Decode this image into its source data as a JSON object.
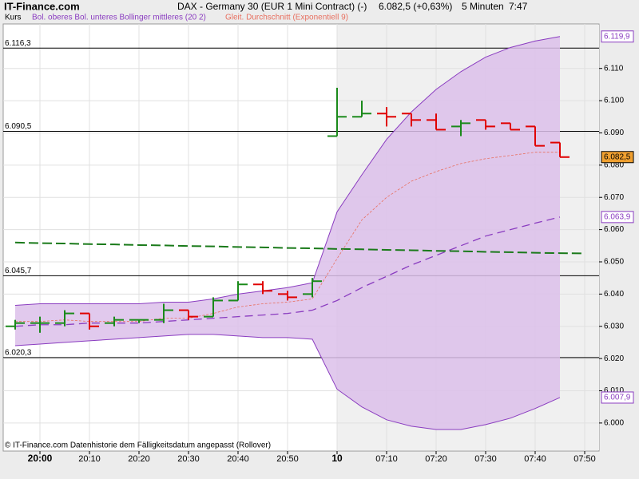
{
  "chart_data": {
    "type": "ohlc",
    "site": "IT-Finance.com",
    "title": "DAX - Germany 30 (EUR 1 Mini Contract) (-)",
    "price_info": "6.082,5 (+0,63%)",
    "interval": "5 Minuten",
    "time": "7:47",
    "footer": "© IT-Finance.com  Datenhistorie dem Fälligkeitsdatum angepasst (Rollover)",
    "categories": [
      null,
      "20:00",
      null,
      "20:10",
      null,
      "20:20",
      null,
      "20:30",
      null,
      "20:40",
      null,
      "20:50",
      null,
      "10",
      null,
      "07:10",
      null,
      "07:20",
      null,
      "07:30",
      null,
      "07:40",
      null,
      "07:50"
    ],
    "bold_categories": [
      "20:00",
      "10"
    ],
    "ylim": [
      5991.3,
      6123.8
    ],
    "yticks": [
      {
        "value": 6000,
        "label": "6.000"
      },
      {
        "value": 6010,
        "label": "6.010"
      },
      {
        "value": 6020,
        "label": "6.020"
      },
      {
        "value": 6030,
        "label": "6.030"
      },
      {
        "value": 6040,
        "label": "6.040"
      },
      {
        "value": 6050,
        "label": "6.050"
      },
      {
        "value": 6060,
        "label": "6.060"
      },
      {
        "value": 6070,
        "label": "6.070"
      },
      {
        "value": 6080,
        "label": "6.080"
      },
      {
        "value": 6090,
        "label": "6.090"
      },
      {
        "value": 6100,
        "label": "6.100"
      },
      {
        "value": 6110,
        "label": "6.110"
      }
    ],
    "grid": true,
    "levels": [
      {
        "value": 6116.3,
        "label": "6.116,3"
      },
      {
        "value": 6090.5,
        "label": "6.090,5"
      },
      {
        "value": 6045.7,
        "label": "6.045,7"
      },
      {
        "value": 6020.3,
        "label": "6.020,3"
      }
    ],
    "series": [
      {
        "name": "Kurs",
        "up_color": "#1a8a1a",
        "down_color": "#e00000",
        "last_label": "6.082,5",
        "last_color": "#f0a030",
        "open": [
          6030,
          6031,
          6031,
          6034,
          6031,
          6032,
          6032,
          6035,
          6033,
          6038,
          6043,
          6040,
          6040,
          6089,
          6095,
          6096,
          6096,
          6094,
          6092,
          6094,
          6093,
          6092,
          6087,
          null
        ],
        "high": [
          6032,
          6033,
          6035,
          6034,
          6033,
          6032,
          6037,
          6035,
          6039,
          6044,
          6044,
          6041,
          6045,
          6104,
          6100,
          6098,
          6096,
          6096,
          6094,
          6094,
          6093,
          6092,
          6087,
          null
        ],
        "low": [
          6029,
          6028,
          6030,
          6029,
          6030,
          6031,
          6031,
          6032,
          6033,
          6038,
          6040,
          6038,
          6039,
          6089,
          6095,
          6092,
          6092,
          6091,
          6089,
          6091,
          6091,
          6086,
          6082.5,
          null
        ],
        "close": [
          6031,
          6031,
          6034,
          6030,
          6032,
          6032,
          6035,
          6033,
          6038,
          6043,
          6041,
          6039,
          6044,
          6095,
          6096,
          6095,
          6094,
          6091,
          6093,
          6092,
          6091,
          6086,
          6082.5,
          null
        ]
      },
      {
        "name": "Bol. oberes Bol. unteres Bollinger mittleres (20 2)",
        "color": "#8a3cc0",
        "fill": "#dcc0ea",
        "upper": [
          6036.5,
          6037,
          6037,
          6037,
          6037,
          6037,
          6037.5,
          6037.5,
          6038.5,
          6040,
          6041,
          6042,
          6043.5,
          6065.5,
          6077,
          6088,
          6096.5,
          6103.5,
          6109,
          6113.5,
          6116.5,
          6118.5,
          6119.9,
          null
        ],
        "middle": [
          6030,
          6030.5,
          6030.5,
          6031,
          6031,
          6031,
          6031.5,
          6032,
          6032.5,
          6033,
          6033.5,
          6034,
          6035,
          6038,
          6042,
          6045.5,
          6049,
          6052,
          6055,
          6058,
          6060,
          6062,
          6063.9,
          null
        ],
        "lower": [
          6024,
          6024.5,
          6025,
          6025.5,
          6026,
          6026.5,
          6027,
          6027.5,
          6027.5,
          6027,
          6026.5,
          6026.5,
          6026,
          6010.5,
          6005,
          6001,
          5999,
          5998,
          5998,
          5999.5,
          6001.5,
          6004.5,
          6007.9,
          null
        ],
        "upper_label": "6.119,9",
        "middle_label": "6.063,9",
        "lower_label": "6.007,9"
      },
      {
        "name": "Gleit. Durchschnitt (Exponentiell 9)",
        "color": "#e87060",
        "values": [
          6031.5,
          6031.5,
          6032,
          6031.5,
          6031.5,
          6031.5,
          6032.5,
          6032.5,
          6034,
          6036,
          6037,
          6037.5,
          6038.5,
          6051,
          6063,
          6070,
          6075,
          6078,
          6080.5,
          6082,
          6083,
          6084,
          6084,
          null
        ]
      }
    ],
    "reference_line": {
      "color": "#1a7a1a",
      "values": [
        6056,
        6055.8,
        6055.7,
        6055.5,
        6055.4,
        6055.2,
        6055.1,
        6054.9,
        6054.8,
        6054.6,
        6054.5,
        6054.3,
        6054.2,
        6054,
        6053.9,
        6053.7,
        6053.6,
        6053.4,
        6053.3,
        6053.1,
        6053,
        6052.8,
        6052.7,
        6052.6
      ]
    }
  }
}
